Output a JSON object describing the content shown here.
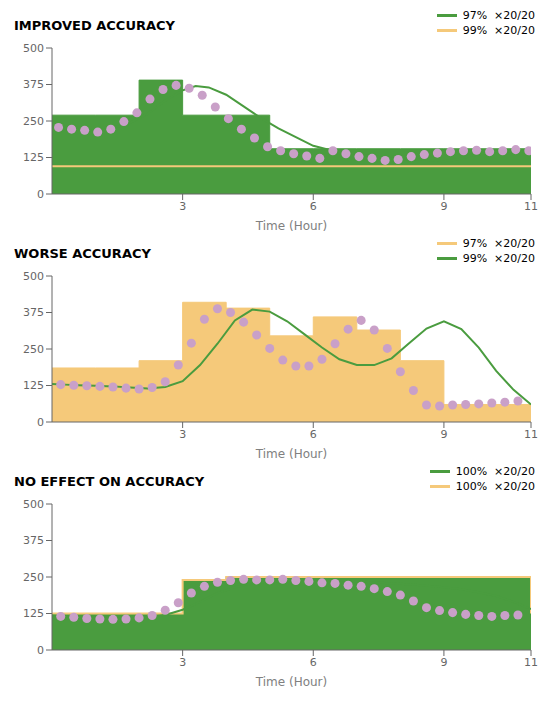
{
  "chart_data": [
    {
      "type": "line",
      "title": "IMPROVED ACCURACY",
      "x_label": "Time (Hour)",
      "xlim": [
        0,
        11
      ],
      "ylim": [
        0,
        500
      ],
      "xticks": [
        3,
        6,
        9,
        11
      ],
      "yticks": [
        0,
        125,
        250,
        375,
        500
      ],
      "legend": "upper right",
      "series": [
        {
          "name": "97%  ×20/20",
          "type": "area",
          "line_style": "step",
          "color": "#4a9c3f",
          "x": [
            0,
            1,
            2,
            3,
            4,
            5,
            6,
            7,
            8,
            9,
            10,
            11
          ],
          "values": [
            270,
            270,
            390,
            270,
            270,
            155,
            155,
            155,
            155,
            155,
            155,
            155
          ]
        },
        {
          "name": "99%  ×20/20",
          "type": "reference_line",
          "color": "#f5c97a",
          "value": 95
        },
        {
          "type": "line",
          "color": "#4a9c3f",
          "x": [
            0,
            0.3,
            0.6,
            1.0,
            1.4,
            1.8,
            2.2,
            2.6,
            3.0,
            3.3,
            3.6,
            4.0,
            4.4,
            4.8,
            5.2,
            5.6,
            6.0,
            6.4,
            6.8,
            7.2,
            7.6,
            8.0,
            8.4,
            8.8,
            9.0,
            9.3,
            9.6,
            9.9,
            10.2,
            10.6,
            11.0
          ],
          "values": [
            230,
            225,
            220,
            215,
            225,
            245,
            275,
            320,
            355,
            370,
            365,
            340,
            300,
            260,
            225,
            195,
            165,
            150,
            140,
            132,
            125,
            120,
            118,
            115,
            112,
            118,
            130,
            138,
            145,
            148,
            145
          ]
        },
        {
          "type": "scatter",
          "color": "#c9a0c8",
          "x": [
            0.15,
            0.45,
            0.75,
            1.05,
            1.35,
            1.65,
            1.95,
            2.25,
            2.55,
            2.85,
            3.15,
            3.45,
            3.75,
            4.05,
            4.35,
            4.65,
            4.95,
            5.25,
            5.55,
            5.85,
            6.15,
            6.45,
            6.75,
            7.05,
            7.35,
            7.65,
            7.95,
            8.25,
            8.55,
            8.85,
            9.15,
            9.45,
            9.75,
            10.05,
            10.35,
            10.65,
            10.95
          ],
          "values": [
            228,
            222,
            218,
            212,
            222,
            248,
            278,
            325,
            358,
            372,
            362,
            338,
            298,
            258,
            222,
            192,
            162,
            148,
            138,
            130,
            122,
            148,
            138,
            128,
            122,
            115,
            118,
            128,
            135,
            140,
            145,
            148,
            150,
            145,
            148,
            152,
            148
          ]
        }
      ]
    },
    {
      "type": "line",
      "title": "WORSE ACCURACY",
      "x_label": "Time (Hour)",
      "xlim": [
        0,
        11
      ],
      "ylim": [
        0,
        500
      ],
      "xticks": [
        3,
        6,
        9,
        11
      ],
      "yticks": [
        0,
        125,
        250,
        375,
        500
      ],
      "legend": "upper right",
      "series": [
        {
          "name": "97%  ×20/20",
          "type": "area",
          "line_style": "step",
          "color": "#f5c97a",
          "x": [
            0,
            1,
            2,
            3,
            4,
            5,
            6,
            7,
            8,
            9,
            10,
            11
          ],
          "values": [
            185,
            185,
            210,
            410,
            390,
            295,
            360,
            315,
            210,
            60,
            60,
            60
          ]
        },
        {
          "name": "99%  ×20/20",
          "type": "line",
          "color": "#4a9c3f",
          "x": [
            0,
            0.3,
            0.6,
            1.0,
            1.4,
            1.8,
            2.2,
            2.6,
            3.0,
            3.4,
            3.8,
            4.2,
            4.6,
            5.0,
            5.4,
            5.8,
            6.2,
            6.6,
            7.0,
            7.4,
            7.8,
            8.2,
            8.6,
            9.0,
            9.4,
            9.8,
            10.2,
            10.6,
            11.0
          ],
          "values": [
            130,
            128,
            126,
            124,
            122,
            118,
            115,
            120,
            140,
            195,
            268,
            348,
            385,
            378,
            345,
            300,
            255,
            215,
            195,
            195,
            218,
            270,
            320,
            345,
            318,
            255,
            175,
            110,
            60
          ]
        },
        {
          "type": "scatter",
          "color": "#c9a0c8",
          "x": [
            0.2,
            0.5,
            0.8,
            1.1,
            1.4,
            1.7,
            2.0,
            2.3,
            2.6,
            2.9,
            3.2,
            3.5,
            3.8,
            4.1,
            4.4,
            4.7,
            5.0,
            5.3,
            5.6,
            5.9,
            6.2,
            6.5,
            6.8,
            7.1,
            7.4,
            7.7,
            8.0,
            8.3,
            8.6,
            8.9,
            9.2,
            9.5,
            9.8,
            10.1,
            10.4,
            10.7
          ],
          "values": [
            128,
            126,
            124,
            122,
            120,
            116,
            113,
            118,
            138,
            195,
            270,
            352,
            388,
            375,
            342,
            298,
            252,
            212,
            192,
            192,
            215,
            268,
            318,
            348,
            315,
            252,
            172,
            108,
            58,
            55,
            58,
            60,
            62,
            65,
            68,
            72
          ]
        }
      ]
    },
    {
      "type": "line",
      "title": "NO EFFECT ON ACCURACY",
      "x_label": "Time (Hour)",
      "xlim": [
        0,
        11
      ],
      "ylim": [
        0,
        500
      ],
      "xticks": [
        3,
        6,
        9,
        11
      ],
      "yticks": [
        0,
        125,
        250,
        375,
        500
      ],
      "legend": "upper right",
      "series": [
        {
          "name": "100%  ×20/20",
          "type": "area",
          "line_style": "step",
          "color": "#4a9c3f",
          "x": [
            0,
            1,
            2,
            3,
            4,
            5,
            6,
            7,
            8,
            9,
            10,
            11
          ],
          "values": [
            125,
            125,
            125,
            240,
            250,
            250,
            250,
            250,
            250,
            250,
            250,
            125
          ]
        },
        {
          "name": "100%  ×20/20",
          "type": "line",
          "line_style": "step",
          "color": "#f5c97a",
          "x": [
            0,
            1,
            2,
            3,
            4,
            5,
            6,
            7,
            8,
            9,
            10,
            11
          ],
          "values": [
            125,
            125,
            125,
            240,
            250,
            250,
            250,
            250,
            250,
            250,
            250,
            125
          ]
        },
        {
          "type": "line",
          "color": "#4a9c3f",
          "x": [
            0,
            0.3,
            0.6,
            1.0,
            1.4,
            1.8,
            2.2,
            2.6,
            3.0,
            3.4,
            3.8,
            4.2,
            4.6,
            5.0,
            5.4,
            5.8,
            6.2,
            6.6,
            7.0,
            7.4,
            7.8,
            8.2,
            8.6,
            9.0,
            9.4,
            9.8,
            10.2,
            10.6,
            11.0
          ],
          "values": [
            118,
            115,
            112,
            110,
            108,
            108,
            112,
            120,
            138,
            165,
            195,
            215,
            228,
            235,
            238,
            238,
            238,
            238,
            235,
            232,
            228,
            225,
            220,
            215,
            208,
            198,
            185,
            165,
            140
          ]
        },
        {
          "type": "scatter",
          "color": "#c9a0c8",
          "x": [
            0.2,
            0.5,
            0.8,
            1.1,
            1.4,
            1.7,
            2.0,
            2.3,
            2.6,
            2.9,
            3.2,
            3.5,
            3.8,
            4.1,
            4.4,
            4.7,
            5.0,
            5.3,
            5.6,
            5.9,
            6.2,
            6.5,
            6.8,
            7.1,
            7.4,
            7.7,
            8.0,
            8.3,
            8.6,
            8.9,
            9.2,
            9.5,
            9.8,
            10.1,
            10.4,
            10.7
          ],
          "values": [
            115,
            112,
            108,
            106,
            105,
            106,
            110,
            118,
            136,
            162,
            195,
            218,
            232,
            238,
            242,
            240,
            240,
            242,
            238,
            235,
            230,
            228,
            222,
            218,
            210,
            200,
            188,
            168,
            145,
            135,
            128,
            122,
            118,
            115,
            118,
            120
          ]
        }
      ]
    }
  ]
}
